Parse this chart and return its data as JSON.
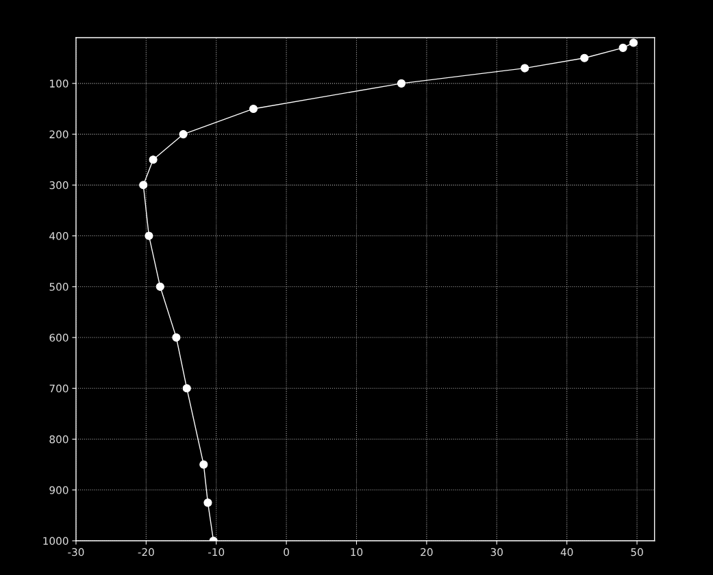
{
  "chart_data": {
    "type": "line",
    "x": [
      49.5,
      48.0,
      42.5,
      34.0,
      16.4,
      -4.7,
      -14.7,
      -19.0,
      -20.4,
      -19.6,
      -18.0,
      -15.7,
      -14.2,
      -11.8,
      -11.2,
      -10.4
    ],
    "values": [
      20,
      30,
      50,
      70,
      100,
      150,
      200,
      250,
      300,
      400,
      500,
      600,
      700,
      850,
      925,
      1000
    ],
    "color": "#ffffff",
    "marker": "circle",
    "line_style": "solid",
    "xlim": [
      -30,
      52.5
    ],
    "xticks": [
      -30,
      -20,
      -10,
      0,
      10,
      20,
      30,
      40,
      50
    ],
    "ylim": [
      1000,
      10
    ],
    "yticks": [
      100,
      200,
      300,
      400,
      500,
      600,
      700,
      800,
      900,
      1000
    ],
    "grid": true,
    "legend": false
  }
}
